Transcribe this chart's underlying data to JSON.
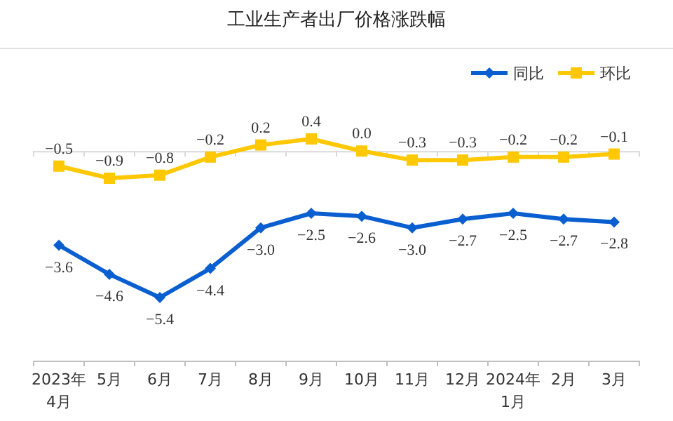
{
  "chart_data": [
    {
      "type": "line",
      "title": "工业生产者出厂价格涨跌幅",
      "categories": [
        null,
        null,
        null,
        null,
        null,
        null,
        null,
        null,
        null,
        null,
        null,
        null
      ],
      "series": [
        {
          "name": "环比",
          "color": "#ffc800",
          "marker": "square",
          "values": [
            -0.5,
            -0.9,
            -0.8,
            -0.2,
            0.2,
            0.4,
            0.0,
            -0.3,
            -0.3,
            -0.2,
            -0.2,
            -0.1
          ],
          "value_labels": [
            "−0.5",
            "−0.9",
            "−0.8",
            "−0.2",
            "0.2",
            "0.4",
            "0.0",
            "−0.3",
            "−0.3",
            "−0.2",
            "−0.2",
            "−0.1"
          ]
        }
      ],
      "legend": "top right",
      "line_style": "solid"
    },
    {
      "type": "line",
      "categories": [
        "2023年\n4月",
        "5月",
        "6月",
        "7月",
        "8月",
        "9月",
        "10月",
        "11月",
        "12月",
        "2024年\n1月",
        "2月",
        "3月"
      ],
      "series": [
        {
          "name": "同比",
          "color": "#0a5fd0",
          "marker": "diamond",
          "values": [
            -3.6,
            -4.6,
            -5.4,
            -4.4,
            -3.0,
            -2.5,
            -2.6,
            -3.0,
            -2.7,
            -2.5,
            -2.7,
            -2.8
          ],
          "value_labels": [
            "−3.6",
            "−4.6",
            "−5.4",
            "−4.4",
            "−3.0",
            "−2.5",
            "−2.6",
            "−3.0",
            "−2.7",
            "−2.5",
            "−2.7",
            "−2.8"
          ]
        }
      ],
      "legend": "top right",
      "line_style": "solid"
    }
  ]
}
